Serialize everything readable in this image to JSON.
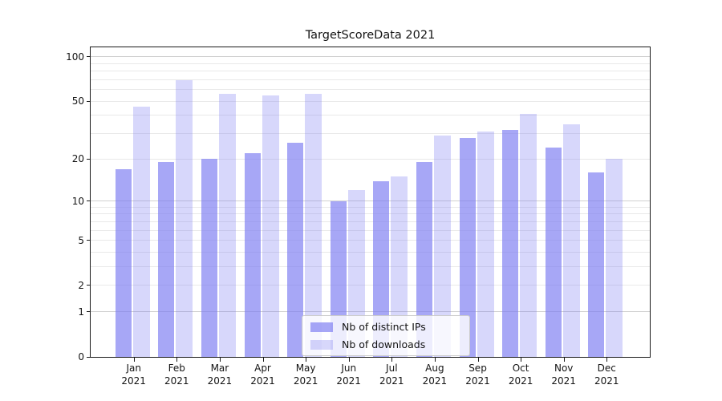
{
  "title": "TargetScoreData 2021",
  "colors": {
    "bar_fill_dark": "rgba(122,122,242,0.66)",
    "bar_fill_light": "rgba(122,122,242,0.30)",
    "grid_minor": "#e9e9e9",
    "grid_major": "#d0d0d0",
    "frame": "#1a1a1a"
  },
  "legend": {
    "items": [
      {
        "label": "Nb of distinct IPs",
        "style": "dark"
      },
      {
        "label": "Nb of downloads",
        "style": "light"
      }
    ]
  },
  "y_axis": {
    "tick_labels": [
      "100",
      "50",
      "20",
      "10",
      "5",
      "2",
      "1",
      "0"
    ],
    "tick_values": [
      100,
      50,
      20,
      10,
      5,
      2,
      1,
      0
    ],
    "minor_grid_values": [
      2,
      3,
      4,
      5,
      6,
      7,
      8,
      9,
      20,
      30,
      40,
      50,
      60,
      70,
      80,
      90
    ],
    "major_grid_values": [
      1,
      10,
      100
    ],
    "scale": "log1p",
    "max": 116
  },
  "x_axis": {
    "months": [
      "Jan",
      "Feb",
      "Mar",
      "Apr",
      "May",
      "Jun",
      "Jul",
      "Aug",
      "Sep",
      "Oct",
      "Nov",
      "Dec"
    ],
    "year": "2021"
  },
  "chart_data": {
    "type": "bar",
    "title": "TargetScoreData 2021",
    "categories": [
      "Jan 2021",
      "Feb 2021",
      "Mar 2021",
      "Apr 2021",
      "May 2021",
      "Jun 2021",
      "Jul 2021",
      "Aug 2021",
      "Sep 2021",
      "Oct 2021",
      "Nov 2021",
      "Dec 2021"
    ],
    "series": [
      {
        "name": "Nb of distinct IPs",
        "values": [
          17,
          19,
          20,
          22,
          26,
          10,
          14,
          19,
          28,
          32,
          24,
          16
        ]
      },
      {
        "name": "Nb of downloads",
        "values": [
          46,
          70,
          56,
          55,
          56,
          12,
          15,
          29,
          31,
          41,
          35,
          20
        ]
      }
    ],
    "yscale": "log1p",
    "ylim": [
      0,
      116
    ],
    "y_tick_values": [
      0,
      1,
      2,
      5,
      10,
      20,
      50,
      100
    ],
    "grid": "both",
    "legend_position": "lower center"
  }
}
